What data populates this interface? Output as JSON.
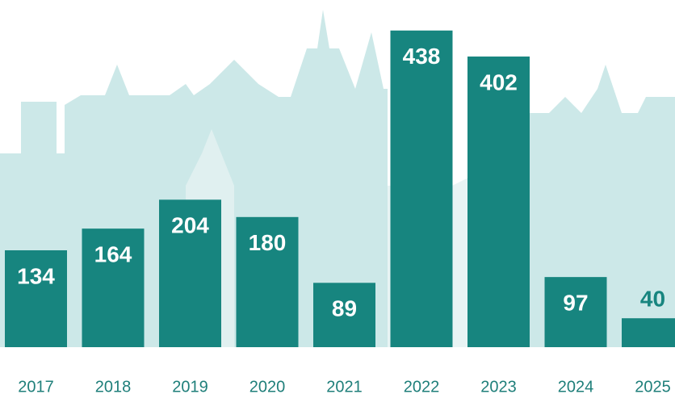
{
  "chart_data": {
    "type": "bar",
    "categories": [
      "2017",
      "2018",
      "2019",
      "2020",
      "2021",
      "2022",
      "2023",
      "2024",
      "2025"
    ],
    "values": [
      134,
      164,
      204,
      180,
      89,
      438,
      402,
      97,
      40
    ],
    "color": "#17857f",
    "ylim": [
      0,
      440
    ]
  }
}
